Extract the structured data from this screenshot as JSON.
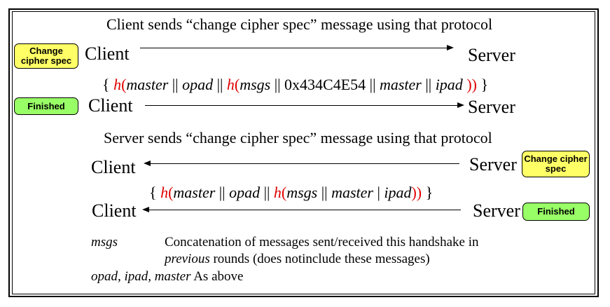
{
  "heading1": "Client sends “change cipher spec” message using that protocol",
  "heading2": "Server sends “change cipher spec” message using that protocol",
  "client": "Client",
  "server": "Server",
  "badges": {
    "change_cipher_spec": "Change cipher spec",
    "finished": "Finished"
  },
  "formula1": {
    "open": "{ ",
    "h1": "h",
    "paren1": "(",
    "master": "master",
    "sep1": " || ",
    "opad": "opad",
    "sep2": " || ",
    "h2": "h",
    "paren2": "(",
    "msgs": "msgs",
    "sep3": " || 0x434C4E54 || ",
    "master2": "master",
    "sep4": " || ",
    "ipad": "ipad",
    "close_parens": " ))",
    "close": " }"
  },
  "formula2": {
    "open": "{ ",
    "h1": "h",
    "paren1": "(",
    "master": "master",
    "sep1": " || ",
    "opad": "opad",
    "sep2": " || ",
    "h2": "h",
    "paren2": "(",
    "msgs": "msgs",
    "sep3": " || ",
    "master2": "master",
    "sep4": " | ",
    "ipad": "ipad",
    "close_parens": "))",
    "close": " }"
  },
  "notes": {
    "msgs_term": "msgs",
    "msgs_def_line1": "Concatenation of messages sent/received this handshake in",
    "msgs_def_line2_italic": "previous",
    "msgs_def_line2_rest": " rounds (does notinclude these messages)",
    "terms_line": "opad, ipad, master",
    "terms_def": "  As above"
  }
}
